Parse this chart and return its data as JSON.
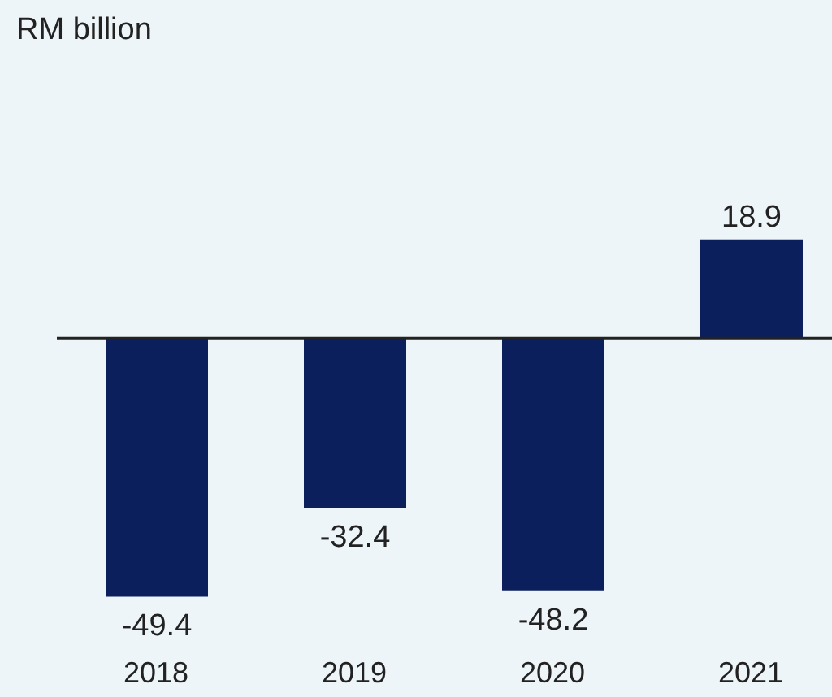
{
  "chart_data": {
    "type": "bar",
    "annotations": [
      "RM billion"
    ],
    "categories": [
      "2018",
      "2019",
      "2020",
      "2021"
    ],
    "values": [
      -49.4,
      -32.4,
      -48.2,
      18.9
    ],
    "color": "#0b1f5c",
    "data_labels": true
  }
}
